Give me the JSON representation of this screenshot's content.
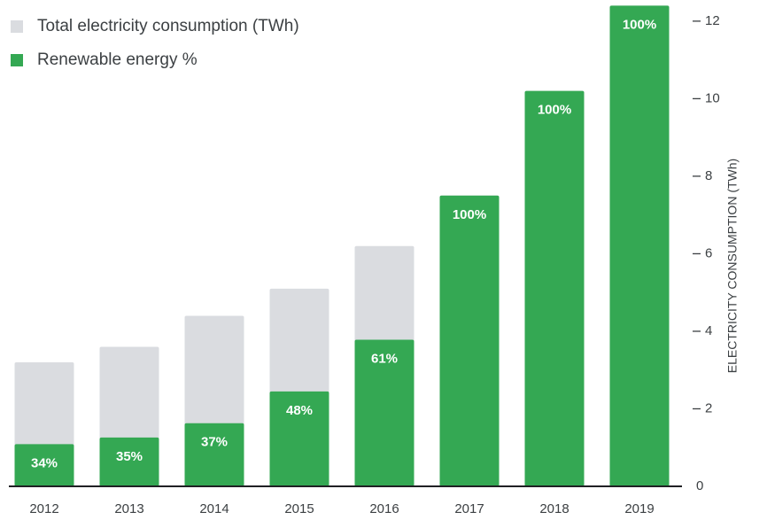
{
  "chart_data": {
    "type": "bar",
    "categories": [
      "2012",
      "2013",
      "2014",
      "2015",
      "2016",
      "2017",
      "2018",
      "2019"
    ],
    "series": [
      {
        "name": "Total electricity consumption (TWh)",
        "color": "#dadce0",
        "values": [
          3.2,
          3.6,
          4.4,
          5.1,
          6.2,
          7.5,
          10.2,
          12.4
        ]
      },
      {
        "name": "Renewable energy %",
        "color": "#34a853",
        "values": [
          34,
          35,
          37,
          48,
          61,
          100,
          100,
          100
        ],
        "value_labels": [
          "34%",
          "35%",
          "37%",
          "48%",
          "61%",
          "100%",
          "100%",
          "100%"
        ]
      }
    ],
    "y_axis_label": "ELECTRICITY CONSUMPTION (TWh)",
    "ylim": [
      0,
      12.5
    ],
    "yticks": [
      0,
      2,
      4,
      6,
      8,
      10,
      12
    ],
    "grid": false,
    "legend": "top-left"
  }
}
